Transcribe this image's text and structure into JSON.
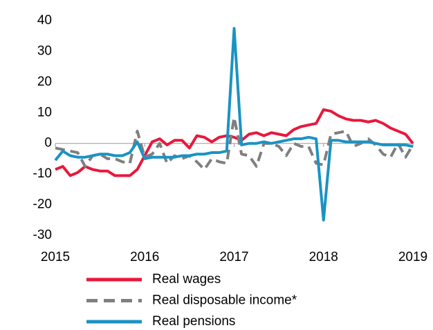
{
  "chart_data": {
    "type": "line",
    "x": [
      2015,
      2015.083,
      2015.167,
      2015.25,
      2015.333,
      2015.417,
      2015.5,
      2015.583,
      2015.667,
      2015.75,
      2015.833,
      2015.917,
      2016,
      2016.083,
      2016.167,
      2016.25,
      2016.333,
      2016.417,
      2016.5,
      2016.583,
      2016.667,
      2016.75,
      2016.833,
      2016.917,
      2017,
      2017.083,
      2017.167,
      2017.25,
      2017.333,
      2017.417,
      2017.5,
      2017.583,
      2017.667,
      2017.75,
      2017.833,
      2017.917,
      2018,
      2018.083,
      2018.167,
      2018.25,
      2018.333,
      2018.417,
      2018.5,
      2018.583,
      2018.667,
      2018.75,
      2018.833,
      2018.917,
      2019
    ],
    "series": [
      {
        "name": "Real wages",
        "color": "#e8183c",
        "dash": false,
        "values": [
          -8.5,
          -7.5,
          -10.5,
          -9.5,
          -7.5,
          -8.5,
          -9,
          -9,
          -10.5,
          -10.5,
          -10.5,
          -8.5,
          -4,
          0.5,
          1.5,
          -0.5,
          1,
          1,
          -1.5,
          2.5,
          2,
          0.5,
          2,
          2.5,
          2,
          1,
          3,
          3.5,
          2.5,
          3.5,
          3,
          2.5,
          4.5,
          5.5,
          6,
          6.5,
          11,
          10.5,
          9,
          8,
          7.5,
          7.5,
          7,
          7.5,
          6.5,
          5,
          4,
          3,
          0
        ]
      },
      {
        "name": "Real disposable income*",
        "color": "#7f7f7f",
        "dash": true,
        "values": [
          -1.5,
          -2,
          -2.5,
          -3,
          -7.5,
          -4,
          -3.5,
          -5,
          -5,
          -6,
          -6.5,
          4,
          -4.5,
          -3.5,
          0,
          -6.5,
          -4,
          -5,
          -4,
          -6,
          -8.5,
          -5,
          -6,
          -6.5,
          8.5,
          -3.5,
          -4,
          -7.5,
          0,
          0,
          -1,
          -4,
          0,
          -1,
          -1,
          -6.5,
          -7,
          3,
          3.5,
          4,
          -1,
          0,
          1.5,
          -0.5,
          -3.5,
          -4.5,
          0,
          -4.5,
          -0.5
        ]
      },
      {
        "name": "Real pensions",
        "color": "#1a93c3",
        "dash": false,
        "values": [
          -5.5,
          -2.5,
          -4,
          -4.5,
          -4.5,
          -4,
          -3.5,
          -3.5,
          -4,
          -4,
          -3,
          0.5,
          -5,
          -4.5,
          -4.5,
          -4.5,
          -4.5,
          -4,
          -4,
          -3.5,
          -3.5,
          -3,
          -3,
          -2.5,
          37.5,
          -0.5,
          0,
          0,
          0.5,
          0,
          0.5,
          1,
          1.5,
          1.5,
          2,
          1.5,
          -25,
          1,
          1,
          0.5,
          0.5,
          0.5,
          0.5,
          0,
          -0.5,
          -0.5,
          -0.5,
          -0.5,
          -1
        ]
      }
    ],
    "xlim": [
      2015,
      2019
    ],
    "xticks": [
      2015,
      2016,
      2017,
      2018,
      2019
    ],
    "ylim": [
      -30,
      40
    ],
    "yticks": [
      -30,
      -20,
      -10,
      0,
      10,
      20,
      30,
      40
    ],
    "grid": false
  }
}
